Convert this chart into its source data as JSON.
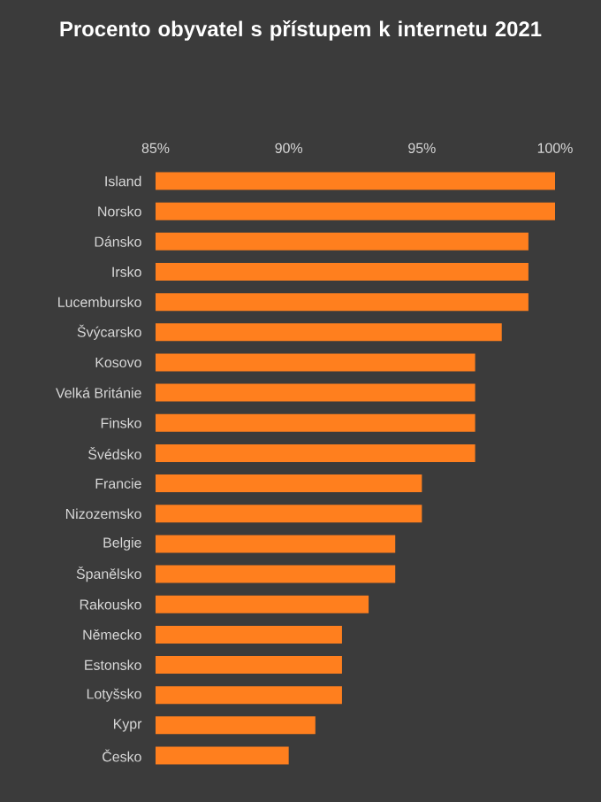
{
  "chart_data": {
    "type": "bar",
    "orientation": "horizontal",
    "title": "Procento obyvatel s přístupem k internetu 2021",
    "categories": [
      "Island",
      "Norsko",
      "Dánsko",
      "Irsko",
      "Lucembursko",
      "Švýcarsko",
      "Kosovo",
      "Velká Británie",
      "Finsko",
      "Švédsko",
      "Francie",
      "Nizozemsko",
      "Belgie",
      "Španělsko",
      "Rakousko",
      "Německo",
      "Estonsko",
      "Lotyšsko",
      "Kypr",
      "Česko"
    ],
    "values": [
      100,
      100,
      99,
      99,
      99,
      98,
      97,
      97,
      97,
      97,
      95,
      95,
      94,
      94,
      93,
      92,
      92,
      92,
      91,
      90
    ],
    "color": "#ff7f1e",
    "xlim": [
      85,
      100
    ],
    "xticks": [
      {
        "value": 85,
        "label": "85%"
      },
      {
        "value": 90,
        "label": "90%"
      },
      {
        "value": 95,
        "label": "95%"
      },
      {
        "value": 100,
        "label": "100%"
      }
    ]
  }
}
